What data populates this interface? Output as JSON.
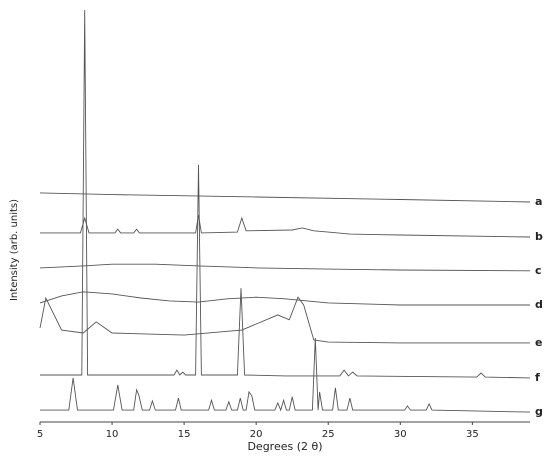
{
  "chart_data": {
    "type": "line",
    "y_label": "Intensity (arb. units)",
    "x_label": "Degrees (2 θ)",
    "xlim": [
      5,
      39
    ],
    "xticks": [
      5,
      10,
      15,
      20,
      25,
      30,
      35
    ],
    "ylim": [
      0,
      100
    ],
    "series": [
      {
        "name": "a",
        "color": "#555555",
        "x": [
          5,
          10,
          20,
          30,
          39
        ],
        "values": [
          55.6,
          55.2,
          54.6,
          54.0,
          53.4
        ]
      },
      {
        "name": "b",
        "color": "#555555",
        "x": [
          5,
          7.8,
          8.1,
          8.4,
          10.2,
          10.4,
          10.6,
          11.5,
          11.7,
          11.9,
          14.5,
          15.8,
          16.0,
          16.2,
          18.7,
          19.0,
          19.3,
          22.5,
          23.2,
          24,
          25,
          26.5,
          30,
          39
        ],
        "values": [
          45.9,
          45.9,
          49.5,
          45.9,
          45.9,
          46.8,
          45.9,
          45.9,
          46.8,
          45.9,
          45.9,
          45.9,
          50.2,
          45.9,
          46.1,
          49.5,
          46.4,
          46.6,
          47.1,
          46.4,
          46.1,
          45.6,
          45.4,
          44.9
        ]
      },
      {
        "name": "c",
        "color": "#555555",
        "x": [
          5,
          8,
          10,
          13,
          16,
          20,
          25,
          30,
          39
        ],
        "values": [
          37.4,
          37.9,
          38.3,
          38.3,
          37.9,
          37.4,
          37.1,
          36.9,
          36.7
        ]
      },
      {
        "name": "d",
        "color": "#555555",
        "x": [
          5,
          6.5,
          8,
          10,
          12,
          14,
          16,
          18,
          20,
          22,
          25,
          30,
          39
        ],
        "values": [
          28.9,
          30.6,
          31.6,
          31.1,
          30.1,
          29.4,
          29.1,
          29.9,
          30.3,
          29.9,
          28.9,
          28.4,
          28.4
        ]
      },
      {
        "name": "e",
        "color": "#555555",
        "x": [
          5,
          5.4,
          6.5,
          8,
          8.9,
          10,
          15,
          19,
          21.5,
          22.3,
          22.9,
          23.3,
          24,
          25,
          30,
          39
        ],
        "values": [
          22.8,
          30.1,
          22.3,
          21.6,
          24.3,
          21.6,
          21.1,
          22.3,
          26.0,
          24.8,
          30.3,
          28.4,
          19.9,
          19.4,
          19.2,
          19.2
        ]
      },
      {
        "name": "f",
        "color": "#555555",
        "x": [
          5,
          7.9,
          8.1,
          8.3,
          14.3,
          14.5,
          14.7,
          14.9,
          15.1,
          15.8,
          16.0,
          16.2,
          18.7,
          18.95,
          19.2,
          22,
          25.8,
          26.1,
          26.4,
          26.7,
          27,
          35.3,
          35.6,
          35.9,
          39
        ],
        "values": [
          11.4,
          11.4,
          100,
          11.4,
          11.4,
          12.6,
          11.4,
          12.1,
          11.4,
          11.4,
          62.4,
          11.4,
          11.4,
          32.5,
          11.4,
          11.2,
          11.2,
          12.6,
          11.2,
          12.1,
          11.2,
          10.9,
          11.9,
          10.9,
          10.7
        ]
      },
      {
        "name": "g",
        "color": "#555555",
        "x": [
          5,
          7.0,
          7.3,
          7.6,
          10.1,
          10.4,
          10.7,
          11.5,
          11.7,
          11.85,
          12.1,
          12.6,
          12.8,
          13.0,
          14.4,
          14.6,
          14.8,
          16.7,
          16.9,
          17.1,
          17.9,
          18.1,
          18.3,
          18.7,
          18.9,
          19.1,
          19.3,
          19.5,
          19.7,
          19.9,
          21.3,
          21.5,
          21.7,
          21.9,
          22.1,
          22.3,
          22.5,
          22.7,
          23.9,
          24.1,
          24.3,
          24.4,
          24.6,
          25.3,
          25.5,
          25.7,
          26.3,
          26.5,
          26.7,
          30.3,
          30.5,
          30.7,
          31.8,
          32.0,
          32.2,
          39
        ],
        "values": [
          2.9,
          2.9,
          10.7,
          2.9,
          2.9,
          9.0,
          2.9,
          2.9,
          7.8,
          6.6,
          2.9,
          2.9,
          5.1,
          2.9,
          2.9,
          5.8,
          2.9,
          2.9,
          5.3,
          2.9,
          2.9,
          4.9,
          2.9,
          2.9,
          5.8,
          2.9,
          2.9,
          7.3,
          6.3,
          2.9,
          2.9,
          4.6,
          2.9,
          5.3,
          2.9,
          2.9,
          6.1,
          2.9,
          2.9,
          20.4,
          2.9,
          7.3,
          2.9,
          2.9,
          8.3,
          2.9,
          2.9,
          5.8,
          2.9,
          2.9,
          3.9,
          2.9,
          2.9,
          4.4,
          2.9,
          2.4
        ]
      }
    ]
  }
}
